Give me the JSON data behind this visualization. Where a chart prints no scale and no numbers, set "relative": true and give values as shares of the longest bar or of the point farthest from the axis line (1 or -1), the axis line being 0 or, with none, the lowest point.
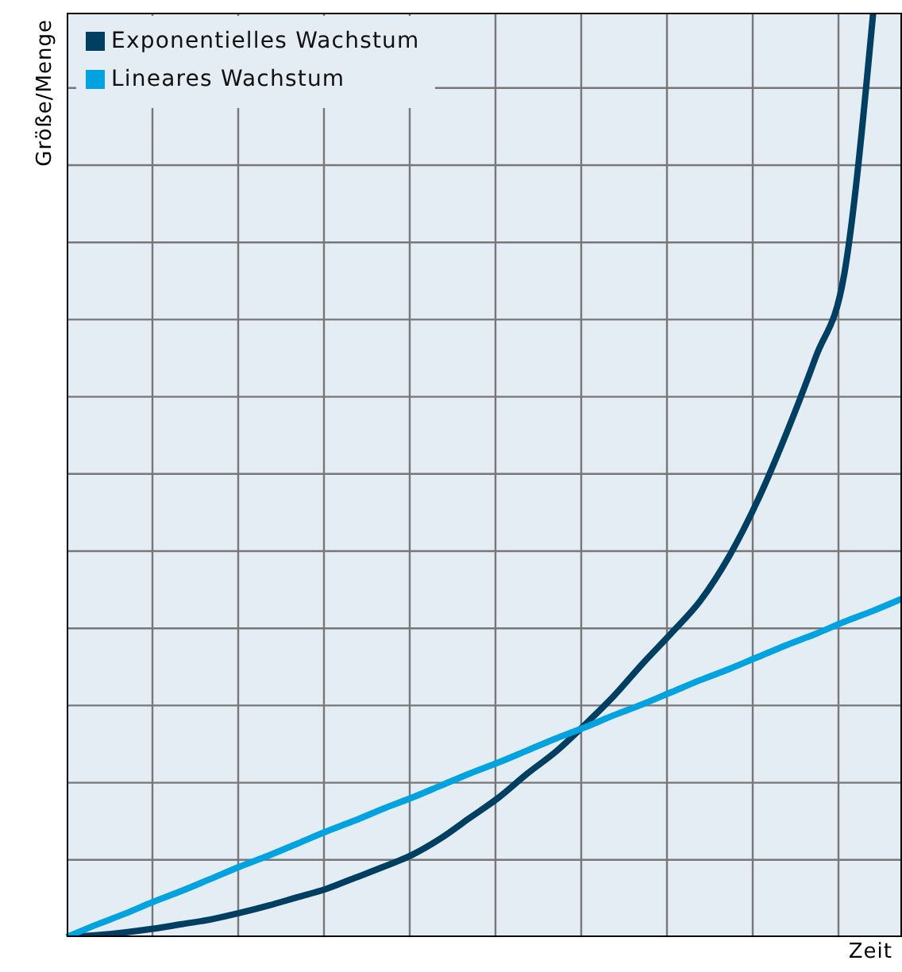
{
  "chart_data": {
    "type": "line",
    "relative": true,
    "xlabel": "Zeit",
    "ylabel": "Größe/Menge",
    "grid": true,
    "legend": "top left",
    "marker": "none",
    "line_style": "solid",
    "categories": [
      null,
      null,
      null,
      null,
      null,
      null,
      null,
      null,
      null,
      null,
      null,
      null,
      null,
      null,
      null,
      null,
      null,
      null,
      null,
      null,
      null,
      null,
      null,
      null,
      null,
      null,
      null,
      null,
      null,
      null
    ],
    "series": [
      {
        "name": "Exponentielles Wachstum",
        "color": "#003f62",
        "values": [
          0,
          0.002,
          0.005,
          0.009,
          0.014,
          0.019,
          0.026,
          0.034,
          0.043,
          0.052,
          0.064,
          0.076,
          0.089,
          0.107,
          0.129,
          0.151,
          0.177,
          0.201,
          0.23,
          0.261,
          0.296,
          0.329,
          0.364,
          0.412,
          0.473,
          0.546,
          0.627,
          0.718,
          1,
          null
        ]
      },
      {
        "name": "Lineares Wachstum",
        "color": "#00a3e0",
        "values": [
          0,
          0.013,
          0.025,
          0.038,
          0.05,
          0.063,
          0.076,
          0.088,
          0.101,
          0.114,
          0.126,
          0.139,
          0.151,
          0.164,
          0.177,
          0.189,
          0.202,
          0.215,
          0.227,
          0.24,
          0.252,
          0.265,
          0.278,
          0.29,
          0.303,
          0.316,
          0.328,
          0.341,
          0.353,
          0.366
        ]
      }
    ]
  }
}
